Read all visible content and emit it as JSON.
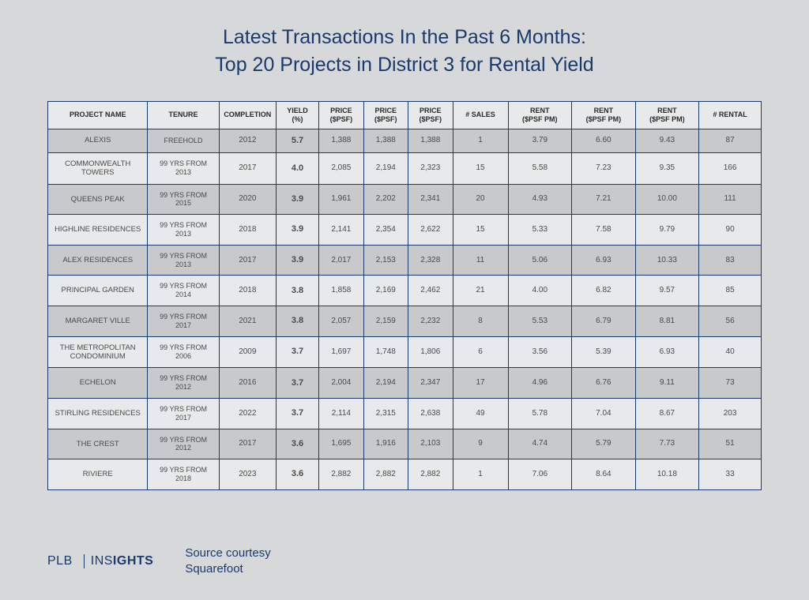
{
  "title_line1": "Latest Transactions In the Past 6 Months:",
  "title_line2": "Top 20 Projects in District 3 for Rental Yield",
  "columns": [
    "PROJECT NAME",
    "TENURE",
    "COMPLETION",
    "YIELD (%)",
    "PRICE ($PSF)",
    "PRICE ($PSF)",
    "PRICE ($PSF)",
    "# SALES",
    "RENT ($PSF PM)",
    "RENT ($PSF PM)",
    "RENT ($PSF PM)",
    "# RENTAL"
  ],
  "rows": [
    {
      "name": "ALEXIS",
      "tenure": "FREEHOLD",
      "completion": "2012",
      "yield": "5.7",
      "p1": "1,388",
      "p2": "1,388",
      "p3": "1,388",
      "sales": "1",
      "r1": "3.79",
      "r2": "6.60",
      "r3": "9.43",
      "rental": "87"
    },
    {
      "name": "COMMONWEALTH TOWERS",
      "tenure": "99 YRS FROM 2013",
      "completion": "2017",
      "yield": "4.0",
      "p1": "2,085",
      "p2": "2,194",
      "p3": "2,323",
      "sales": "15",
      "r1": "5.58",
      "r2": "7.23",
      "r3": "9.35",
      "rental": "166"
    },
    {
      "name": "QUEENS PEAK",
      "tenure": "99 YRS FROM 2015",
      "completion": "2020",
      "yield": "3.9",
      "p1": "1,961",
      "p2": "2,202",
      "p3": "2,341",
      "sales": "20",
      "r1": "4.93",
      "r2": "7.21",
      "r3": "10.00",
      "rental": "111"
    },
    {
      "name": "HIGHLINE RESIDENCES",
      "tenure": "99 YRS FROM 2013",
      "completion": "2018",
      "yield": "3.9",
      "p1": "2,141",
      "p2": "2,354",
      "p3": "2,622",
      "sales": "15",
      "r1": "5.33",
      "r2": "7.58",
      "r3": "9.79",
      "rental": "90"
    },
    {
      "name": "ALEX RESIDENCES",
      "tenure": "99 YRS FROM 2013",
      "completion": "2017",
      "yield": "3.9",
      "p1": "2,017",
      "p2": "2,153",
      "p3": "2,328",
      "sales": "11",
      "r1": "5.06",
      "r2": "6.93",
      "r3": "10.33",
      "rental": "83"
    },
    {
      "name": "PRINCIPAL GARDEN",
      "tenure": "99 YRS FROM 2014",
      "completion": "2018",
      "yield": "3.8",
      "p1": "1,858",
      "p2": "2,169",
      "p3": "2,462",
      "sales": "21",
      "r1": "4.00",
      "r2": "6.82",
      "r3": "9.57",
      "rental": "85"
    },
    {
      "name": "MARGARET VILLE",
      "tenure": "99 YRS FROM 2017",
      "completion": "2021",
      "yield": "3.8",
      "p1": "2,057",
      "p2": "2,159",
      "p3": "2,232",
      "sales": "8",
      "r1": "5.53",
      "r2": "6.79",
      "r3": "8.81",
      "rental": "56"
    },
    {
      "name": "THE METROPOLITAN CONDOMINIUM",
      "tenure": "99 YRS FROM 2006",
      "completion": "2009",
      "yield": "3.7",
      "p1": "1,697",
      "p2": "1,748",
      "p3": "1,806",
      "sales": "6",
      "r1": "3.56",
      "r2": "5.39",
      "r3": "6.93",
      "rental": "40"
    },
    {
      "name": "ECHELON",
      "tenure": "99 YRS FROM 2012",
      "completion": "2016",
      "yield": "3.7",
      "p1": "2,004",
      "p2": "2,194",
      "p3": "2,347",
      "sales": "17",
      "r1": "4.96",
      "r2": "6.76",
      "r3": "9.11",
      "rental": "73"
    },
    {
      "name": "STIRLING RESIDENCES",
      "tenure": "99 YRS FROM 2017",
      "completion": "2022",
      "yield": "3.7",
      "p1": "2,114",
      "p2": "2,315",
      "p3": "2,638",
      "sales": "49",
      "r1": "5.78",
      "r2": "7.04",
      "r3": "8.67",
      "rental": "203"
    },
    {
      "name": "THE CREST",
      "tenure": "99 YRS FROM 2012",
      "completion": "2017",
      "yield": "3.6",
      "p1": "1,695",
      "p2": "1,916",
      "p3": "2,103",
      "sales": "9",
      "r1": "4.74",
      "r2": "5.79",
      "r3": "7.73",
      "rental": "51"
    },
    {
      "name": "RIVIERE",
      "tenure": "99 YRS FROM 2018",
      "completion": "2023",
      "yield": "3.6",
      "p1": "2,882",
      "p2": "2,882",
      "p3": "2,882",
      "sales": "1",
      "r1": "7.06",
      "r2": "8.64",
      "r3": "10.18",
      "rental": "33"
    }
  ],
  "logo": {
    "plb": "PLB",
    "insights_prefix": "INS",
    "insights_bold": "IGHTS"
  },
  "source": {
    "line1": "Source courtesy",
    "line2": "Squarefoot"
  },
  "colors": {
    "background": "#d6d8da",
    "title": "#1a3a6e",
    "border": "#1a3a6e",
    "row_odd": "#c7c9cb",
    "row_even": "#e8e9ea",
    "text": "#4a4a4a"
  }
}
